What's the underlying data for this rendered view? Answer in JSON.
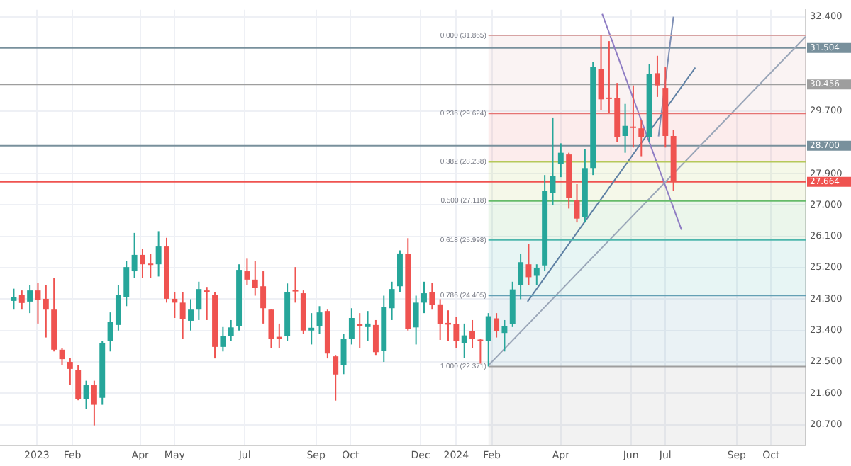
{
  "chart_data": {
    "type": "candlestick",
    "grid": true,
    "legend": false,
    "marker": "none",
    "xlim": [
      "2022-11-30",
      "2024-10-31"
    ],
    "xticks": [
      {
        "value": "2023-01-01",
        "label": "2023"
      },
      {
        "value": "2023-02-01",
        "label": "Feb"
      },
      {
        "value": "2023-04-01",
        "label": "Apr"
      },
      {
        "value": "2023-05-01",
        "label": "May"
      },
      {
        "value": "2023-07-01",
        "label": "Jul"
      },
      {
        "value": "2023-09-01",
        "label": "Sep"
      },
      {
        "value": "2023-10-01",
        "label": "Oct"
      },
      {
        "value": "2023-12-01",
        "label": "Dec"
      },
      {
        "value": "2024-01-01",
        "label": "2024"
      },
      {
        "value": "2024-02-01",
        "label": "Feb"
      },
      {
        "value": "2024-04-01",
        "label": "Apr"
      },
      {
        "value": "2024-06-01",
        "label": "Jun"
      },
      {
        "value": "2024-07-01",
        "label": "Jul"
      },
      {
        "value": "2024-09-01",
        "label": "Sep"
      },
      {
        "value": "2024-10-01",
        "label": "Oct"
      }
    ],
    "ylim": [
      20.1,
      32.6
    ],
    "yticks": [
      {
        "value": 20.7,
        "label": "20.700"
      },
      {
        "value": 21.6,
        "label": "21.600"
      },
      {
        "value": 22.5,
        "label": "22.500"
      },
      {
        "value": 23.4,
        "label": "23.400"
      },
      {
        "value": 24.3,
        "label": "24.300"
      },
      {
        "value": 25.2,
        "label": "25.200"
      },
      {
        "value": 26.1,
        "label": "26.100"
      },
      {
        "value": 27.0,
        "label": "27.000"
      },
      {
        "value": 27.9,
        "label": "27.900"
      },
      {
        "value": 29.7,
        "label": "29.700"
      },
      {
        "value": 32.4,
        "label": "32.400"
      }
    ],
    "ref_lines": [
      {
        "axis": "y",
        "value": 31.504,
        "label": "31.504",
        "color": "#78909c"
      },
      {
        "axis": "y",
        "value": 30.456,
        "label": "30.456",
        "color": "#9e9e9e"
      },
      {
        "axis": "y",
        "value": 28.7,
        "label": "28.700",
        "color": "#78909c"
      },
      {
        "axis": "y",
        "value": 27.664,
        "label": "27.664",
        "color": "#ef5350"
      }
    ],
    "annotations": [
      {
        "text": "0.000 (31.865)",
        "x": "2024-01-29",
        "y": 31.865
      },
      {
        "text": "0.236 (29.624)",
        "x": "2024-01-29",
        "y": 29.624
      },
      {
        "text": "0.382 (28.238)",
        "x": "2024-01-29",
        "y": 28.238
      },
      {
        "text": "0.500 (27.118)",
        "x": "2024-01-29",
        "y": 27.118
      },
      {
        "text": "0.618 (25.998)",
        "x": "2024-01-29",
        "y": 25.998
      },
      {
        "text": "0.786 (24.405)",
        "x": "2024-01-29",
        "y": 24.405
      },
      {
        "text": "1.000 (22.371)",
        "x": "2024-01-29",
        "y": 22.371
      }
    ],
    "series": [
      {
        "type": "line",
        "color": "#d7a3a3",
        "x": [
          "2024-01-29",
          "2024-10-31"
        ],
        "values": [
          31.865,
          31.865
        ],
        "upper": [
          31.865,
          31.865
        ],
        "lower": [
          29.624,
          29.624
        ]
      },
      {
        "type": "line",
        "color": "#e57373",
        "x": [
          "2024-01-29",
          "2024-10-31"
        ],
        "values": [
          29.624,
          29.624
        ],
        "upper": [
          29.624,
          29.624
        ],
        "lower": [
          28.238,
          28.238
        ]
      },
      {
        "type": "line",
        "color": "#b5c85a",
        "x": [
          "2024-01-29",
          "2024-10-31"
        ],
        "values": [
          28.238,
          28.238
        ],
        "upper": [
          28.238,
          28.238
        ],
        "lower": [
          27.118,
          27.118
        ]
      },
      {
        "type": "line",
        "color": "#66bb6a",
        "x": [
          "2024-01-29",
          "2024-10-31"
        ],
        "values": [
          27.118,
          27.118
        ],
        "upper": [
          27.118,
          27.118
        ],
        "lower": [
          25.998,
          25.998
        ]
      },
      {
        "type": "line",
        "color": "#4db6ac",
        "x": [
          "2024-01-29",
          "2024-10-31"
        ],
        "values": [
          25.998,
          25.998
        ],
        "upper": [
          25.998,
          25.998
        ],
        "lower": [
          24.405,
          24.405
        ]
      },
      {
        "type": "line",
        "color": "#64a0b5",
        "x": [
          "2024-01-29",
          "2024-10-31"
        ],
        "values": [
          24.405,
          24.405
        ],
        "upper": [
          24.405,
          24.405
        ],
        "lower": [
          22.371,
          22.371
        ]
      },
      {
        "type": "line",
        "color": "#9e9e9e",
        "x": [
          "2024-01-29",
          "2024-10-31"
        ],
        "values": [
          22.371,
          22.371
        ],
        "upper": [
          22.371,
          22.371
        ],
        "lower": [
          20.1,
          20.1
        ]
      },
      {
        "type": "line",
        "color": "#5d7fa3",
        "x": [
          "2024-03-03",
          "2024-07-27"
        ],
        "values": [
          24.23,
          30.94
        ]
      },
      {
        "type": "line",
        "color": "#7e8fb5",
        "x": [
          "2024-06-25",
          "2024-07-08"
        ],
        "values": [
          28.97,
          32.4
        ]
      },
      {
        "type": "line",
        "color": "#9aa6b8",
        "x": [
          "2024-01-29",
          "2024-10-31"
        ],
        "values": [
          22.4,
          31.83
        ]
      },
      {
        "type": "line",
        "color": "#8e7cc3",
        "x": [
          "2024-05-07",
          "2024-07-15"
        ],
        "values": [
          32.48,
          26.29
        ]
      },
      {
        "type": "candlestick",
        "colors": [
          "#26a69a",
          "#ef5350",
          "#26a69a",
          "#ef5350",
          "#ef5350",
          "#ef5350",
          "#ef5350",
          "#ef5350",
          "#ef5350",
          "#26a69a",
          "#ef5350",
          "#26a69a",
          "#26a69a",
          "#26a69a",
          "#26a69a",
          "#26a69a",
          "#ef5350",
          "#ef5350",
          "#26a69a",
          "#ef5350",
          "#ef5350",
          "#ef5350",
          "#26a69a",
          "#26a69a",
          "#ef5350",
          "#ef5350",
          "#26a69a",
          "#26a69a",
          "#26a69a",
          "#ef5350",
          "#ef5350",
          "#ef5350",
          "#ef5350",
          "#ef5350",
          "#26a69a",
          "#ef5350",
          "#ef5350",
          "#26a69a",
          "#26a69a",
          "#ef5350",
          "#ef5350",
          "#26a69a",
          "#26a69a",
          "#ef5350",
          "#26a69a",
          "#ef5350",
          "#26a69a",
          "#26a69a",
          "#26a69a",
          "#ef5350",
          "#26a69a",
          "#26a69a",
          "#ef5350",
          "#ef5350",
          "#ef5350",
          "#ef5350",
          "#26a69a",
          "#ef5350",
          "#ef5350",
          "#26a69a",
          "#ef5350",
          "#26a69a",
          "#26a69a",
          "#26a69a",
          "#ef5350",
          "#26a69a",
          "#26a69a",
          "#26a69a",
          "#26a69a",
          "#ef5350",
          "#ef5350",
          "#26a69a",
          "#26a69a",
          "#ef5350",
          "#ef5350",
          "#ef5350",
          "#26a69a",
          "#ef5350",
          "#ef5350",
          "#26a69a",
          "#ef5350",
          "#ef5350",
          "#ef5350"
        ],
        "x": [
          "2022-12-12",
          "2022-12-19",
          "2022-12-26",
          "2023-01-02",
          "2023-01-09",
          "2023-01-16",
          "2023-01-23",
          "2023-01-30",
          "2023-02-06",
          "2023-02-13",
          "2023-02-20",
          "2023-02-27",
          "2023-03-06",
          "2023-03-13",
          "2023-03-20",
          "2023-03-27",
          "2023-04-03",
          "2023-04-10",
          "2023-04-17",
          "2023-04-24",
          "2023-05-01",
          "2023-05-08",
          "2023-05-15",
          "2023-05-22",
          "2023-05-29",
          "2023-06-05",
          "2023-06-12",
          "2023-06-19",
          "2023-06-26",
          "2023-07-03",
          "2023-07-10",
          "2023-07-17",
          "2023-07-24",
          "2023-07-31",
          "2023-08-07",
          "2023-08-14",
          "2023-08-21",
          "2023-08-28",
          "2023-09-04",
          "2023-09-11",
          "2023-09-18",
          "2023-09-25",
          "2023-10-02",
          "2023-10-09",
          "2023-10-16",
          "2023-10-23",
          "2023-10-30",
          "2023-11-06",
          "2023-11-13",
          "2023-11-20",
          "2023-11-27",
          "2023-12-04",
          "2023-12-11",
          "2023-12-18",
          "2023-12-25",
          "2024-01-01",
          "2024-01-08",
          "2024-01-15",
          "2024-01-22",
          "2024-01-29",
          "2024-02-05",
          "2024-02-12",
          "2024-02-19",
          "2024-02-26",
          "2024-03-04",
          "2024-03-11",
          "2024-03-18",
          "2024-03-25",
          "2024-04-01",
          "2024-04-08",
          "2024-04-15",
          "2024-04-22",
          "2024-04-29",
          "2024-05-06",
          "2024-05-13",
          "2024-05-20",
          "2024-05-27",
          "2024-06-03",
          "2024-06-10",
          "2024-06-17",
          "2024-06-24",
          "2024-07-01",
          "2024-07-08"
        ],
        "ohlc": [
          [
            24.25,
            24.6,
            24.0,
            24.35
          ],
          [
            24.43,
            24.55,
            24.0,
            24.19
          ],
          [
            24.23,
            24.7,
            23.9,
            24.55
          ],
          [
            24.55,
            24.77,
            23.6,
            24.28
          ],
          [
            24.31,
            24.7,
            23.2,
            24.0
          ],
          [
            24.0,
            24.9,
            22.8,
            22.85
          ],
          [
            22.85,
            22.9,
            22.4,
            22.58
          ],
          [
            22.5,
            22.62,
            21.83,
            22.3
          ],
          [
            22.26,
            22.4,
            21.4,
            21.43
          ],
          [
            21.43,
            21.96,
            21.16,
            21.83
          ],
          [
            21.83,
            21.96,
            20.68,
            21.27
          ],
          [
            21.47,
            23.1,
            21.27,
            23.05
          ],
          [
            23.09,
            23.92,
            22.8,
            23.64
          ],
          [
            23.56,
            24.7,
            23.4,
            24.43
          ],
          [
            24.35,
            25.4,
            24.1,
            25.22
          ],
          [
            25.1,
            26.2,
            24.9,
            25.57
          ],
          [
            25.57,
            25.75,
            24.9,
            25.3
          ],
          [
            25.32,
            25.6,
            24.9,
            25.28
          ],
          [
            25.3,
            26.25,
            24.95,
            25.81
          ],
          [
            25.81,
            26.06,
            24.2,
            24.31
          ],
          [
            24.31,
            24.5,
            23.76,
            24.2
          ],
          [
            24.2,
            24.5,
            23.17,
            23.72
          ],
          [
            23.68,
            24.3,
            23.4,
            24.0
          ],
          [
            24.0,
            24.8,
            23.7,
            24.59
          ],
          [
            24.55,
            24.65,
            23.7,
            24.5
          ],
          [
            24.43,
            24.5,
            22.6,
            22.93
          ],
          [
            22.93,
            23.5,
            22.8,
            23.25
          ],
          [
            23.25,
            23.7,
            23.1,
            23.49
          ],
          [
            23.52,
            25.3,
            23.4,
            25.14
          ],
          [
            25.1,
            25.46,
            24.7,
            24.86
          ],
          [
            24.86,
            25.4,
            24.4,
            24.63
          ],
          [
            24.67,
            25.1,
            23.6,
            24.04
          ],
          [
            24.0,
            24.0,
            22.9,
            23.17
          ],
          [
            23.22,
            23.6,
            22.9,
            23.17
          ],
          [
            23.25,
            24.75,
            23.1,
            24.51
          ],
          [
            24.57,
            25.22,
            24.2,
            24.52
          ],
          [
            24.47,
            24.55,
            23.3,
            23.4
          ],
          [
            23.4,
            23.9,
            23.0,
            23.48
          ],
          [
            23.52,
            24.1,
            23.3,
            23.92
          ],
          [
            23.96,
            24.0,
            22.6,
            22.74
          ],
          [
            22.66,
            22.7,
            21.39,
            22.14
          ],
          [
            22.42,
            23.3,
            22.15,
            23.17
          ],
          [
            23.17,
            24.04,
            23.0,
            23.76
          ],
          [
            23.58,
            23.9,
            22.9,
            23.53
          ],
          [
            23.5,
            23.96,
            23.1,
            23.6
          ],
          [
            23.56,
            23.7,
            22.7,
            22.78
          ],
          [
            22.82,
            24.4,
            22.5,
            24.08
          ],
          [
            24.04,
            24.8,
            23.7,
            24.59
          ],
          [
            24.67,
            25.7,
            24.5,
            25.61
          ],
          [
            25.61,
            26.05,
            23.4,
            23.45
          ],
          [
            23.49,
            24.4,
            23.0,
            24.2
          ],
          [
            24.2,
            24.8,
            23.9,
            24.47
          ],
          [
            24.51,
            24.77,
            24.0,
            24.14
          ],
          [
            24.15,
            24.3,
            23.13,
            23.59
          ],
          [
            23.62,
            23.98,
            23.1,
            23.57
          ],
          [
            23.59,
            23.8,
            22.9,
            23.09
          ],
          [
            23.04,
            23.6,
            22.62,
            23.26
          ],
          [
            23.39,
            23.7,
            22.9,
            23.17
          ],
          [
            23.14,
            23.15,
            22.45,
            23.1
          ],
          [
            23.1,
            23.9,
            22.37,
            23.81
          ],
          [
            23.75,
            23.9,
            23.2,
            23.39
          ],
          [
            23.33,
            23.7,
            22.8,
            23.52
          ],
          [
            23.59,
            24.8,
            23.5,
            24.58
          ],
          [
            24.71,
            25.6,
            24.3,
            25.36
          ],
          [
            25.3,
            25.89,
            24.7,
            24.93
          ],
          [
            24.97,
            25.3,
            24.7,
            25.19
          ],
          [
            25.27,
            27.86,
            25.1,
            27.4
          ],
          [
            27.34,
            29.51,
            27.0,
            27.84
          ],
          [
            28.17,
            28.77,
            27.8,
            28.5
          ],
          [
            28.45,
            28.5,
            26.9,
            27.2
          ],
          [
            27.14,
            27.6,
            26.5,
            26.61
          ],
          [
            26.65,
            28.6,
            26.5,
            28.06
          ],
          [
            28.06,
            31.1,
            27.86,
            30.95
          ],
          [
            30.89,
            31.865,
            29.72,
            30.03
          ],
          [
            30.08,
            31.7,
            29.64,
            30.05
          ],
          [
            30.07,
            30.5,
            28.8,
            28.94
          ],
          [
            28.98,
            29.9,
            28.5,
            29.27
          ],
          [
            29.25,
            30.43,
            28.65,
            29.22
          ],
          [
            29.2,
            29.45,
            28.4,
            28.94
          ],
          [
            28.94,
            31.05,
            28.8,
            30.76
          ],
          [
            30.78,
            31.28,
            30.1,
            30.43
          ],
          [
            30.36,
            30.95,
            28.65,
            28.98
          ],
          [
            28.98,
            29.15,
            27.4,
            27.664
          ]
        ]
      }
    ]
  }
}
